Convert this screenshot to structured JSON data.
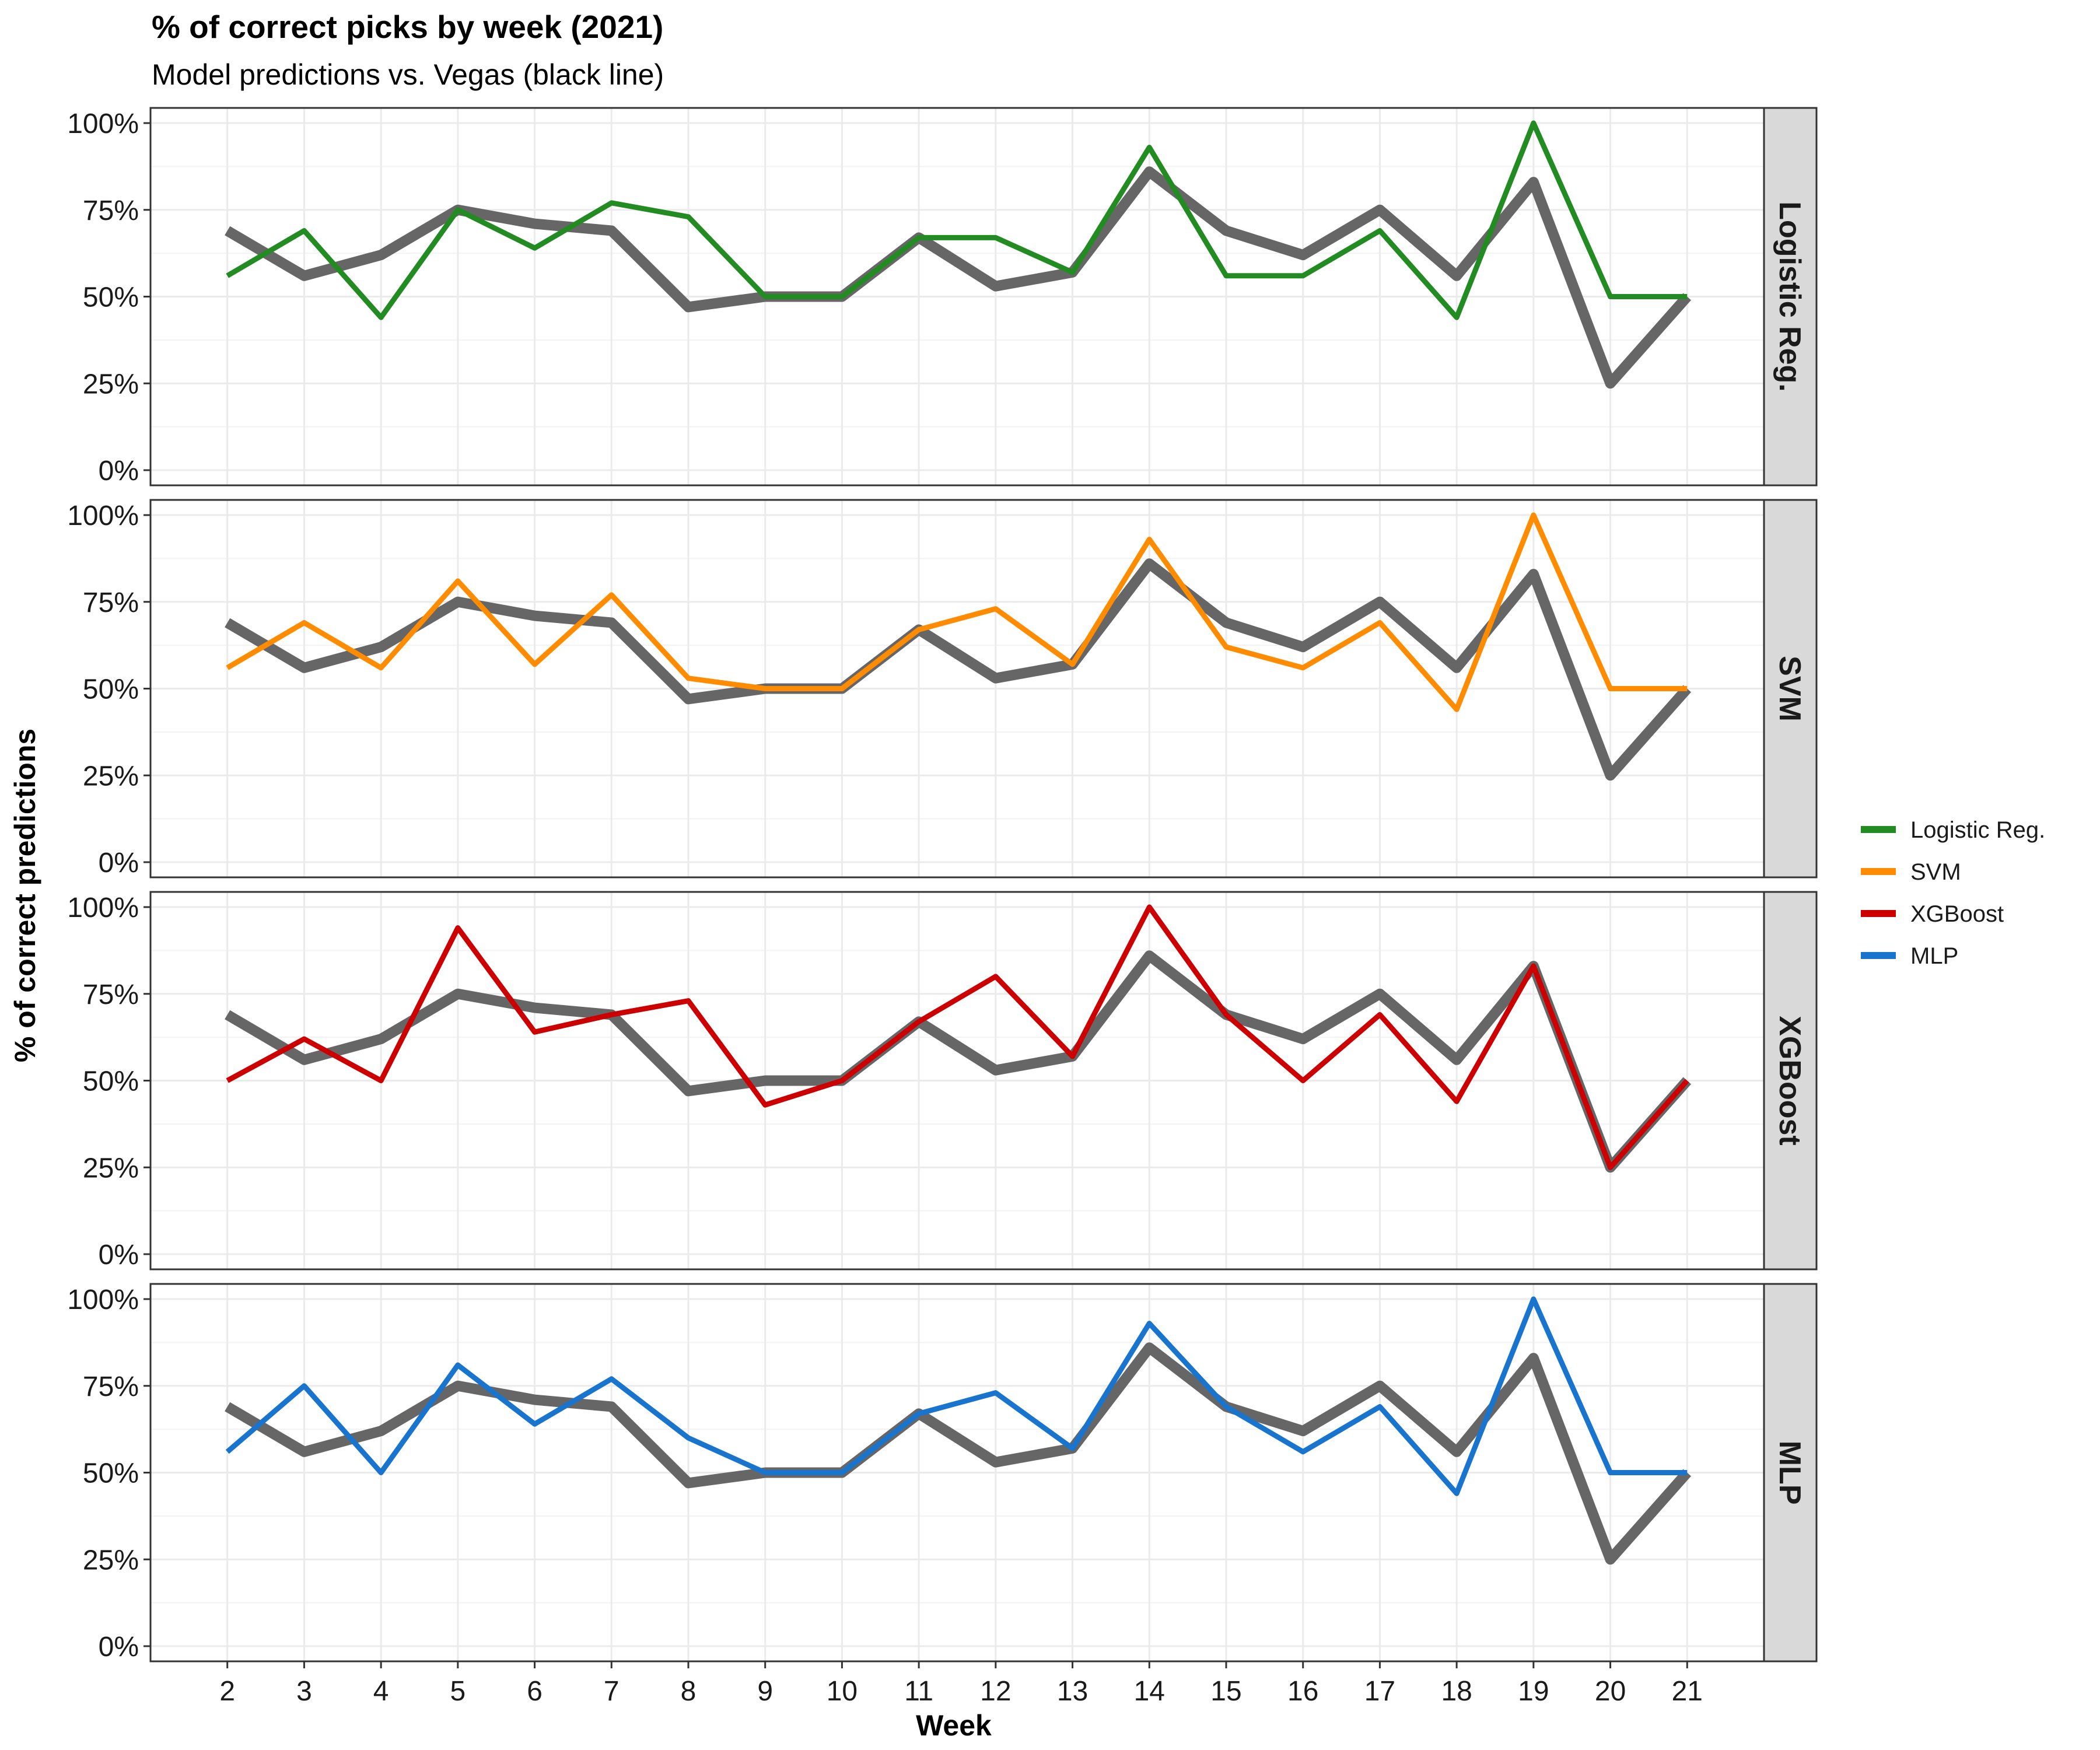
{
  "chart_data": {
    "type": "line",
    "title": "% of correct picks by week (2021)",
    "subtitle": "Model predictions vs. Vegas (black line)",
    "xlabel": "Week",
    "ylabel": "% of correct predictions",
    "x": [
      2,
      3,
      4,
      5,
      6,
      7,
      8,
      9,
      10,
      11,
      12,
      13,
      14,
      15,
      16,
      17,
      18,
      19,
      20,
      21
    ],
    "xlim": [
      1,
      22
    ],
    "ylim": [
      0,
      100
    ],
    "y_ticks": [
      0,
      25,
      50,
      75,
      100
    ],
    "y_tick_labels": [
      "0%",
      "25%",
      "50%",
      "75%",
      "100%"
    ],
    "grid": true,
    "legend_position": "right",
    "vegas": {
      "name": "Vegas",
      "color": "#666666",
      "values": [
        69,
        56,
        62,
        75,
        71,
        69,
        47,
        50,
        50,
        67,
        53,
        57,
        86,
        69,
        62,
        75,
        56,
        83,
        25,
        50
      ]
    },
    "series": [
      {
        "name": "Logistic Reg.",
        "color": "#228B22",
        "values": [
          56,
          69,
          44,
          75,
          64,
          77,
          73,
          50,
          50,
          67,
          67,
          57,
          93,
          56,
          56,
          69,
          44,
          100,
          50,
          50
        ]
      },
      {
        "name": "SVM",
        "color": "#FF8C00",
        "values": [
          56,
          69,
          56,
          81,
          57,
          77,
          53,
          50,
          50,
          67,
          73,
          57,
          93,
          62,
          56,
          69,
          44,
          100,
          50,
          50
        ]
      },
      {
        "name": "XGBoost",
        "color": "#CC0000",
        "values": [
          50,
          62,
          50,
          94,
          64,
          69,
          73,
          43,
          50,
          67,
          80,
          57,
          100,
          69,
          50,
          69,
          44,
          83,
          25,
          50
        ]
      },
      {
        "name": "MLP",
        "color": "#1874CD",
        "values": [
          56,
          75,
          50,
          81,
          64,
          77,
          60,
          50,
          50,
          67,
          73,
          57,
          93,
          69,
          56,
          69,
          44,
          100,
          50,
          50
        ]
      }
    ]
  }
}
